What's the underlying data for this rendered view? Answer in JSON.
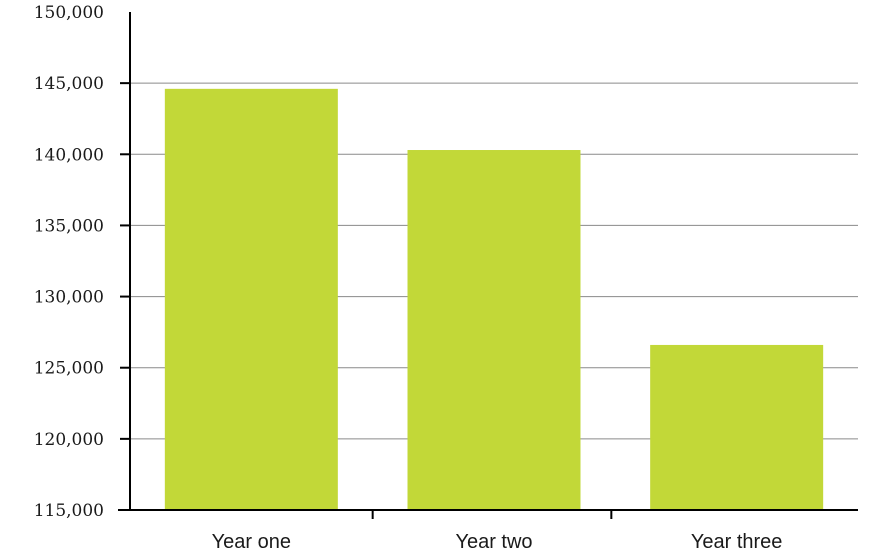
{
  "chart_data": {
    "type": "bar",
    "categories": [
      "Year one",
      "Year two",
      "Year three"
    ],
    "values": [
      144600,
      140300,
      126600
    ],
    "ylim": [
      115000,
      150000
    ],
    "yticks": [
      115000,
      120000,
      125000,
      130000,
      135000,
      140000,
      145000,
      150000
    ],
    "ytick_labels": [
      "115,000",
      "120,000",
      "125,000",
      "130,000",
      "135,000",
      "140,000",
      "145,000",
      "150,000"
    ],
    "grid": true,
    "bar_color": "#c2d838",
    "grid_color": "#8a8a8a",
    "axis_color": "#000000"
  }
}
